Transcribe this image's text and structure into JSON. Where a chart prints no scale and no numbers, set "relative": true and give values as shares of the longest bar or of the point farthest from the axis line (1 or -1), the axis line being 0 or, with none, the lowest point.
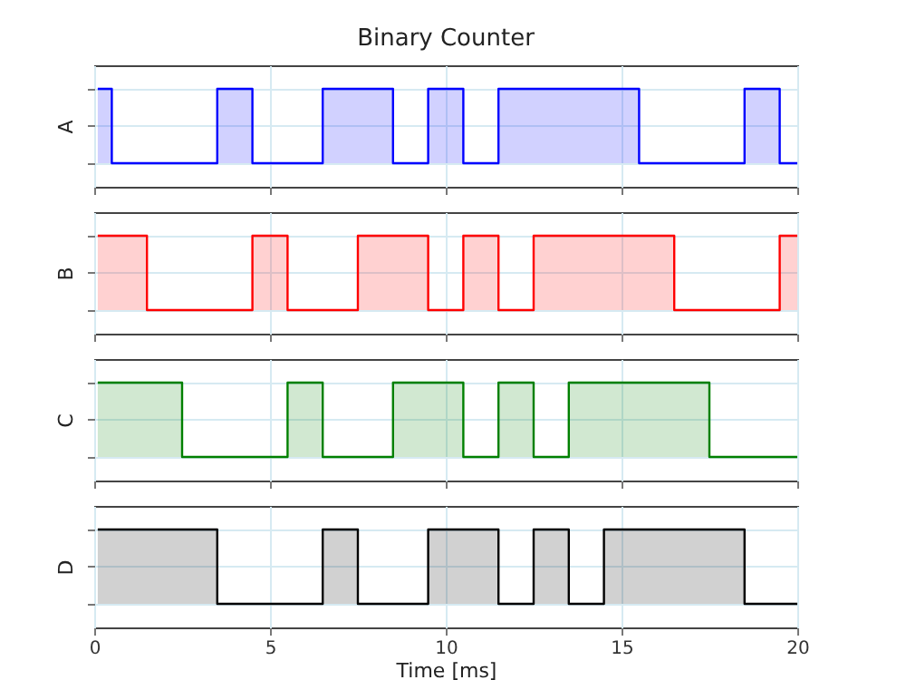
{
  "chart_data": [
    {
      "type": "area",
      "title": "Binary Counter",
      "ylabel": "A",
      "relative": true,
      "grid": true,
      "tick_labels": false,
      "xlim": [
        0,
        20
      ],
      "xticks": [
        0,
        5,
        10,
        15,
        20
      ],
      "x": [
        0.1,
        0.5,
        3.5,
        4.5,
        6.5,
        8.5,
        9.5,
        10.5,
        11.5,
        15.5,
        18.5,
        19.5,
        20
      ],
      "series": [
        {
          "color": "#0000ff",
          "values": [
            1,
            0,
            1,
            0,
            1,
            0,
            1,
            0,
            1,
            0,
            1,
            0,
            0
          ]
        }
      ]
    },
    {
      "type": "area",
      "ylabel": "B",
      "relative": true,
      "grid": true,
      "tick_labels": false,
      "xlim": [
        0,
        20
      ],
      "xticks": [
        0,
        5,
        10,
        15,
        20
      ],
      "x": [
        0.1,
        1.5,
        4.5,
        5.5,
        7.5,
        9.5,
        10.5,
        11.5,
        12.5,
        16.5,
        19.5,
        20
      ],
      "series": [
        {
          "color": "#ff0000",
          "values": [
            1,
            0,
            1,
            0,
            1,
            0,
            1,
            0,
            1,
            0,
            1,
            1
          ]
        }
      ]
    },
    {
      "type": "area",
      "ylabel": "C",
      "relative": true,
      "grid": true,
      "tick_labels": false,
      "xlim": [
        0,
        20
      ],
      "xticks": [
        0,
        5,
        10,
        15,
        20
      ],
      "x": [
        0.1,
        2.5,
        5.5,
        6.5,
        8.5,
        10.5,
        11.5,
        12.5,
        13.5,
        17.5,
        20
      ],
      "series": [
        {
          "color": "#008000",
          "values": [
            1,
            0,
            1,
            0,
            1,
            0,
            1,
            0,
            1,
            0,
            0
          ]
        }
      ]
    },
    {
      "type": "area",
      "ylabel": "D",
      "xlabel": "Time [ms]",
      "relative": true,
      "grid": true,
      "tick_labels": "x",
      "xlim": [
        0,
        20
      ],
      "xticks": [
        0,
        5,
        10,
        15,
        20
      ],
      "x": [
        0.1,
        3.5,
        6.5,
        7.5,
        9.5,
        11.5,
        12.5,
        13.5,
        14.5,
        18.5,
        20
      ],
      "series": [
        {
          "color": "#000000",
          "values": [
            1,
            0,
            1,
            0,
            1,
            0,
            1,
            0,
            1,
            0,
            0
          ]
        }
      ]
    }
  ]
}
